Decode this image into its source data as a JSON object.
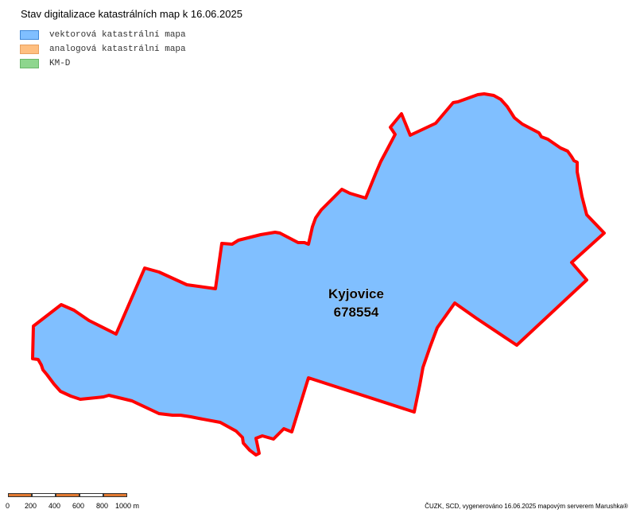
{
  "map": {
    "title": "Stav digitalizace katastrálních map k 16.06.2025"
  },
  "legend": {
    "items": [
      {
        "label": "vektorová katastrální mapa",
        "fill": "#80bfff",
        "border": "#3f88d8"
      },
      {
        "label": "analogová katastrální mapa",
        "fill": "#ffbf80",
        "border": "#e8a060"
      },
      {
        "label": "KM-D",
        "fill": "#8ed68e",
        "border": "#6ab86a"
      }
    ]
  },
  "parcel": {
    "name": "Kyjovice",
    "code": "678554",
    "fill_color": "#80bfff",
    "border_color": "#ff0000"
  },
  "scalebar": {
    "labels": [
      "0",
      "200",
      "400",
      "600",
      "800",
      "1000 m"
    ],
    "colors": [
      "#e07830",
      "#ffffff"
    ]
  },
  "credits": {
    "text": "ČUZK, SCD, vygenerováno 16.06.2025 mapovým serverem Marushka®"
  }
}
